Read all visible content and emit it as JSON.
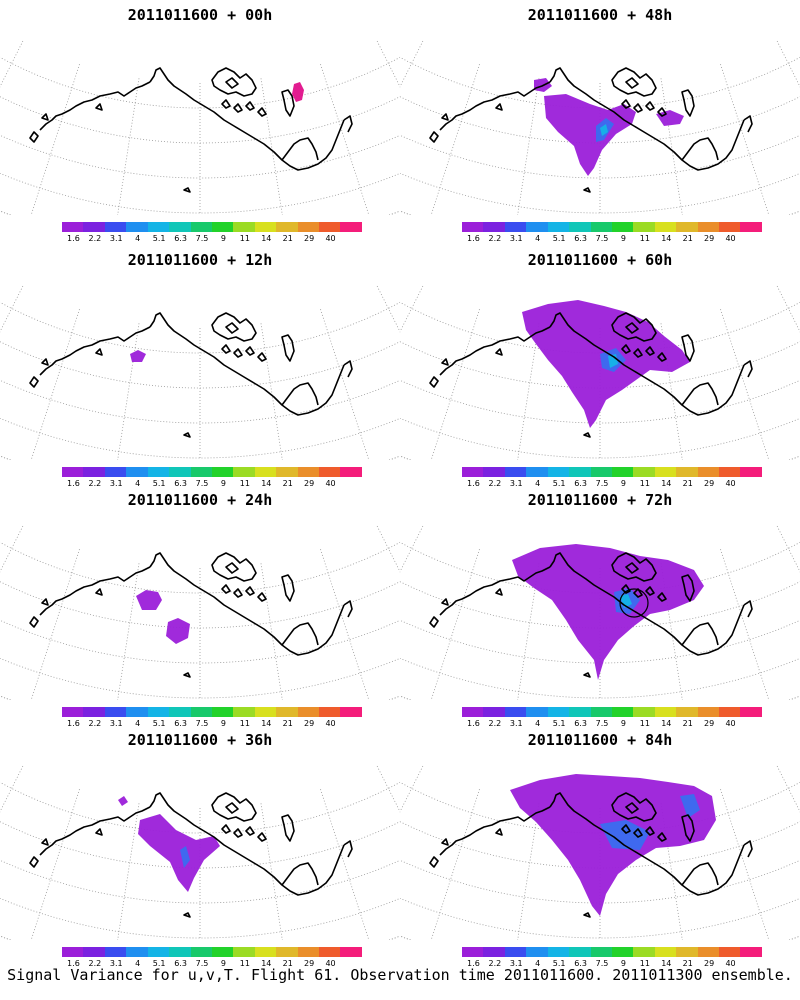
{
  "panels": [
    {
      "title": "2011011600 + 00h",
      "blobs": [
        {
          "shape": "small_red"
        }
      ]
    },
    {
      "title": "2011011600 + 48h",
      "blobs": [
        {
          "shape": "streak"
        },
        {
          "shape": "upper_left_spot"
        },
        {
          "shape": "right_small"
        }
      ]
    },
    {
      "title": "2011011600 + 12h",
      "blobs": [
        {
          "shape": "tiny_left"
        }
      ]
    },
    {
      "title": "2011011600 + 60h",
      "blobs": [
        {
          "shape": "wide"
        },
        {
          "shape": "streak_long"
        }
      ]
    },
    {
      "title": "2011011600 + 24h",
      "blobs": [
        {
          "shape": "left_pair"
        }
      ]
    },
    {
      "title": "2011011600 + 72h",
      "blobs": [
        {
          "shape": "very_wide"
        },
        {
          "shape": "streak_long"
        },
        {
          "shape": "circle_marker"
        }
      ]
    },
    {
      "title": "2011011600 + 36h",
      "blobs": [
        {
          "shape": "v_shape"
        },
        {
          "shape": "tiny_upper"
        }
      ]
    },
    {
      "title": "2011011600 + 84h",
      "blobs": [
        {
          "shape": "widest"
        },
        {
          "shape": "streak_long"
        }
      ]
    }
  ],
  "colorbar": {
    "labels": [
      "1.6",
      "2.2",
      "3.1",
      "4",
      "5.1",
      "6.3",
      "7.5",
      "9",
      "11",
      "14",
      "21",
      "29",
      "40"
    ],
    "colors": [
      "#9b1fd9",
      "#7b22e0",
      "#3a4df0",
      "#1f8ff0",
      "#14b4e6",
      "#10c6b8",
      "#18c96b",
      "#22d22a",
      "#9bdb24",
      "#d8e01f",
      "#e0b82a",
      "#ea8e2a",
      "#ef5b2c",
      "#f41d7a"
    ]
  },
  "footer": "Signal Variance for u,v,T. Flight 61. Observation time 2011011600. 2011011300 ensemble."
}
